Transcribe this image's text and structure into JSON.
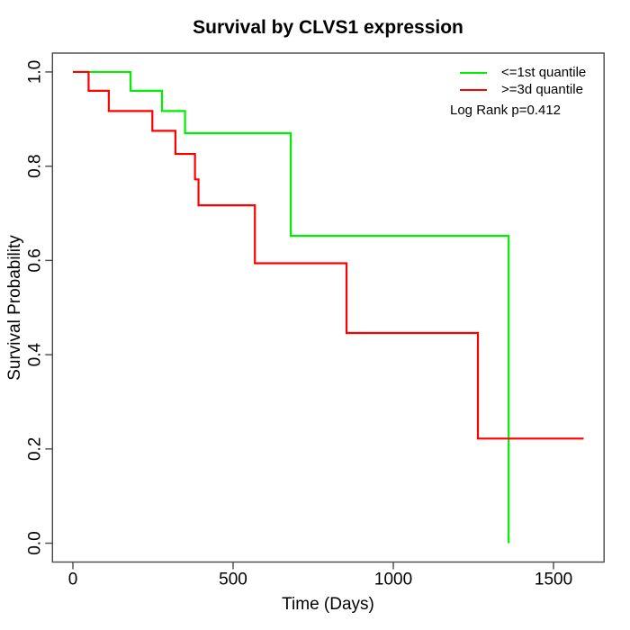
{
  "chart_data": {
    "type": "line",
    "subtype": "kaplan-meier-step",
    "title": "Survival by CLVS1 expression",
    "xlabel": "Time (Days)",
    "ylabel": "Survival Probability",
    "xlim": [
      0,
      1594
    ],
    "ylim": [
      0,
      1
    ],
    "axis_padding_frac": 0.04,
    "xticks": [
      0,
      500,
      1000,
      1500
    ],
    "yticks": [
      0.0,
      0.2,
      0.4,
      0.6,
      0.8,
      1.0
    ],
    "grid": false,
    "legend_position": "top-right",
    "annotation": "Log Rank p=0.412",
    "axis_color": "#484848",
    "series": [
      {
        "name": "<=1st quantile",
        "color": "#00EE00",
        "points": [
          [
            0,
            1.0
          ],
          [
            180,
            0.96
          ],
          [
            278,
            0.917
          ],
          [
            350,
            0.87
          ],
          [
            680,
            0.652
          ],
          [
            1360,
            0.0
          ]
        ],
        "end_time": 1360
      },
      {
        "name": ">=3d quantile",
        "color": "#FF0000",
        "points": [
          [
            0,
            1.0
          ],
          [
            49,
            0.96
          ],
          [
            112,
            0.917
          ],
          [
            248,
            0.875
          ],
          [
            320,
            0.826
          ],
          [
            381,
            0.772
          ],
          [
            392,
            0.717
          ],
          [
            568,
            0.594
          ],
          [
            854,
            0.446
          ],
          [
            1264,
            0.222
          ]
        ],
        "end_time": 1594
      }
    ]
  }
}
